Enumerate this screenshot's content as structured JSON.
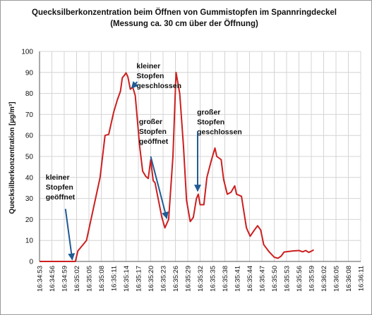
{
  "chart_data": {
    "type": "line",
    "title": "Quecksilberkonzentration beim Öffnen von Gummistopfen im Spannringdeckel",
    "subtitle": "(Messung ca. 30 cm über der Öffnung)",
    "xlabel": "",
    "ylabel": "Quecksilberkonzentration [µg/m³]",
    "ylim": [
      0,
      100
    ],
    "yticks": [
      0,
      10,
      20,
      30,
      40,
      50,
      60,
      70,
      80,
      90,
      100
    ],
    "grid": true,
    "legend": "none",
    "xticks": [
      "16:34:53",
      "16:34:56",
      "16:34:59",
      "16:35:02",
      "16:35:05",
      "16:35:08",
      "16:35:11",
      "16:35:14",
      "16:35:17",
      "16:35:20",
      "16:35:23",
      "16:35:26",
      "16:35:29",
      "16:35:32",
      "16:35:35",
      "16:35:38",
      "16:35:41",
      "16:35:44",
      "16:35:47",
      "16:35:50",
      "16:35:53",
      "16:35:56",
      "16:35:59",
      "16:36:02",
      "16:36:05",
      "16:36:08",
      "16:36:11"
    ],
    "series": [
      {
        "name": "",
        "color": "#cc1f1f",
        "points": [
          [
            0,
            0
          ],
          [
            2.9,
            0
          ],
          [
            3.1,
            5
          ],
          [
            3.8,
            10
          ],
          [
            4.9,
            40
          ],
          [
            5.3,
            60
          ],
          [
            5.6,
            60.5
          ],
          [
            6.0,
            71
          ],
          [
            6.3,
            77
          ],
          [
            6.55,
            81
          ],
          [
            6.7,
            87.5
          ],
          [
            6.85,
            88.5
          ],
          [
            7.0,
            89.8
          ],
          [
            7.15,
            88
          ],
          [
            7.35,
            82
          ],
          [
            7.55,
            83
          ],
          [
            7.75,
            79
          ],
          [
            8.1,
            55
          ],
          [
            8.35,
            43
          ],
          [
            8.6,
            40.5
          ],
          [
            8.8,
            39.5
          ],
          [
            9.0,
            48.5
          ],
          [
            9.2,
            38.5
          ],
          [
            9.35,
            37.5
          ],
          [
            9.6,
            30
          ],
          [
            9.9,
            21
          ],
          [
            10.15,
            16
          ],
          [
            10.45,
            20
          ],
          [
            10.8,
            50
          ],
          [
            11.05,
            90
          ],
          [
            11.35,
            80
          ],
          [
            11.65,
            55
          ],
          [
            11.9,
            29
          ],
          [
            12.2,
            19
          ],
          [
            12.45,
            21
          ],
          [
            12.7,
            30
          ],
          [
            12.85,
            32
          ],
          [
            13.0,
            27
          ],
          [
            13.3,
            27
          ],
          [
            13.55,
            40
          ],
          [
            13.9,
            48
          ],
          [
            14.2,
            54
          ],
          [
            14.35,
            50
          ],
          [
            14.7,
            48.5
          ],
          [
            14.9,
            39
          ],
          [
            15.2,
            32
          ],
          [
            15.5,
            33
          ],
          [
            15.8,
            36
          ],
          [
            15.95,
            32
          ],
          [
            16.35,
            31
          ],
          [
            16.75,
            16
          ],
          [
            17.05,
            12
          ],
          [
            17.4,
            15
          ],
          [
            17.65,
            17
          ],
          [
            17.9,
            15
          ],
          [
            18.15,
            8
          ],
          [
            18.6,
            4.5
          ],
          [
            19.0,
            2
          ],
          [
            19.3,
            1.5
          ],
          [
            19.55,
            2.5
          ],
          [
            19.8,
            4.5
          ],
          [
            20.5,
            5
          ],
          [
            21.0,
            5.2
          ],
          [
            21.3,
            4.6
          ],
          [
            21.55,
            5.2
          ],
          [
            21.8,
            4.3
          ],
          [
            22.2,
            5.5
          ]
        ]
      }
    ],
    "annotations": [
      {
        "lines": [
          "kleiner",
          "Stopfen",
          "geöffnet"
        ],
        "text_x": 0.5,
        "text_y": 39,
        "arrow_from": [
          2.1,
          25
        ],
        "arrow_to": [
          2.65,
          0.8
        ]
      },
      {
        "lines": [
          "kleiner",
          "Stopfen",
          "geschlossen"
        ],
        "text_x": 7.85,
        "text_y": 92,
        "arrow_from": [
          7.9,
          85.5
        ],
        "arrow_to": [
          7.45,
          82.5
        ]
      },
      {
        "lines": [
          "großer",
          "Stopfen",
          "geöffnet"
        ],
        "text_x": 8.05,
        "text_y": 65.5,
        "arrow_from": [
          9.0,
          50
        ],
        "arrow_to": [
          10.3,
          20.5
        ]
      },
      {
        "lines": [
          "großer",
          "Stopfen",
          "geschlossen"
        ],
        "text_x": 12.75,
        "text_y": 70,
        "arrow_from": [
          12.8,
          62
        ],
        "arrow_to": [
          12.8,
          33.5
        ]
      }
    ]
  }
}
